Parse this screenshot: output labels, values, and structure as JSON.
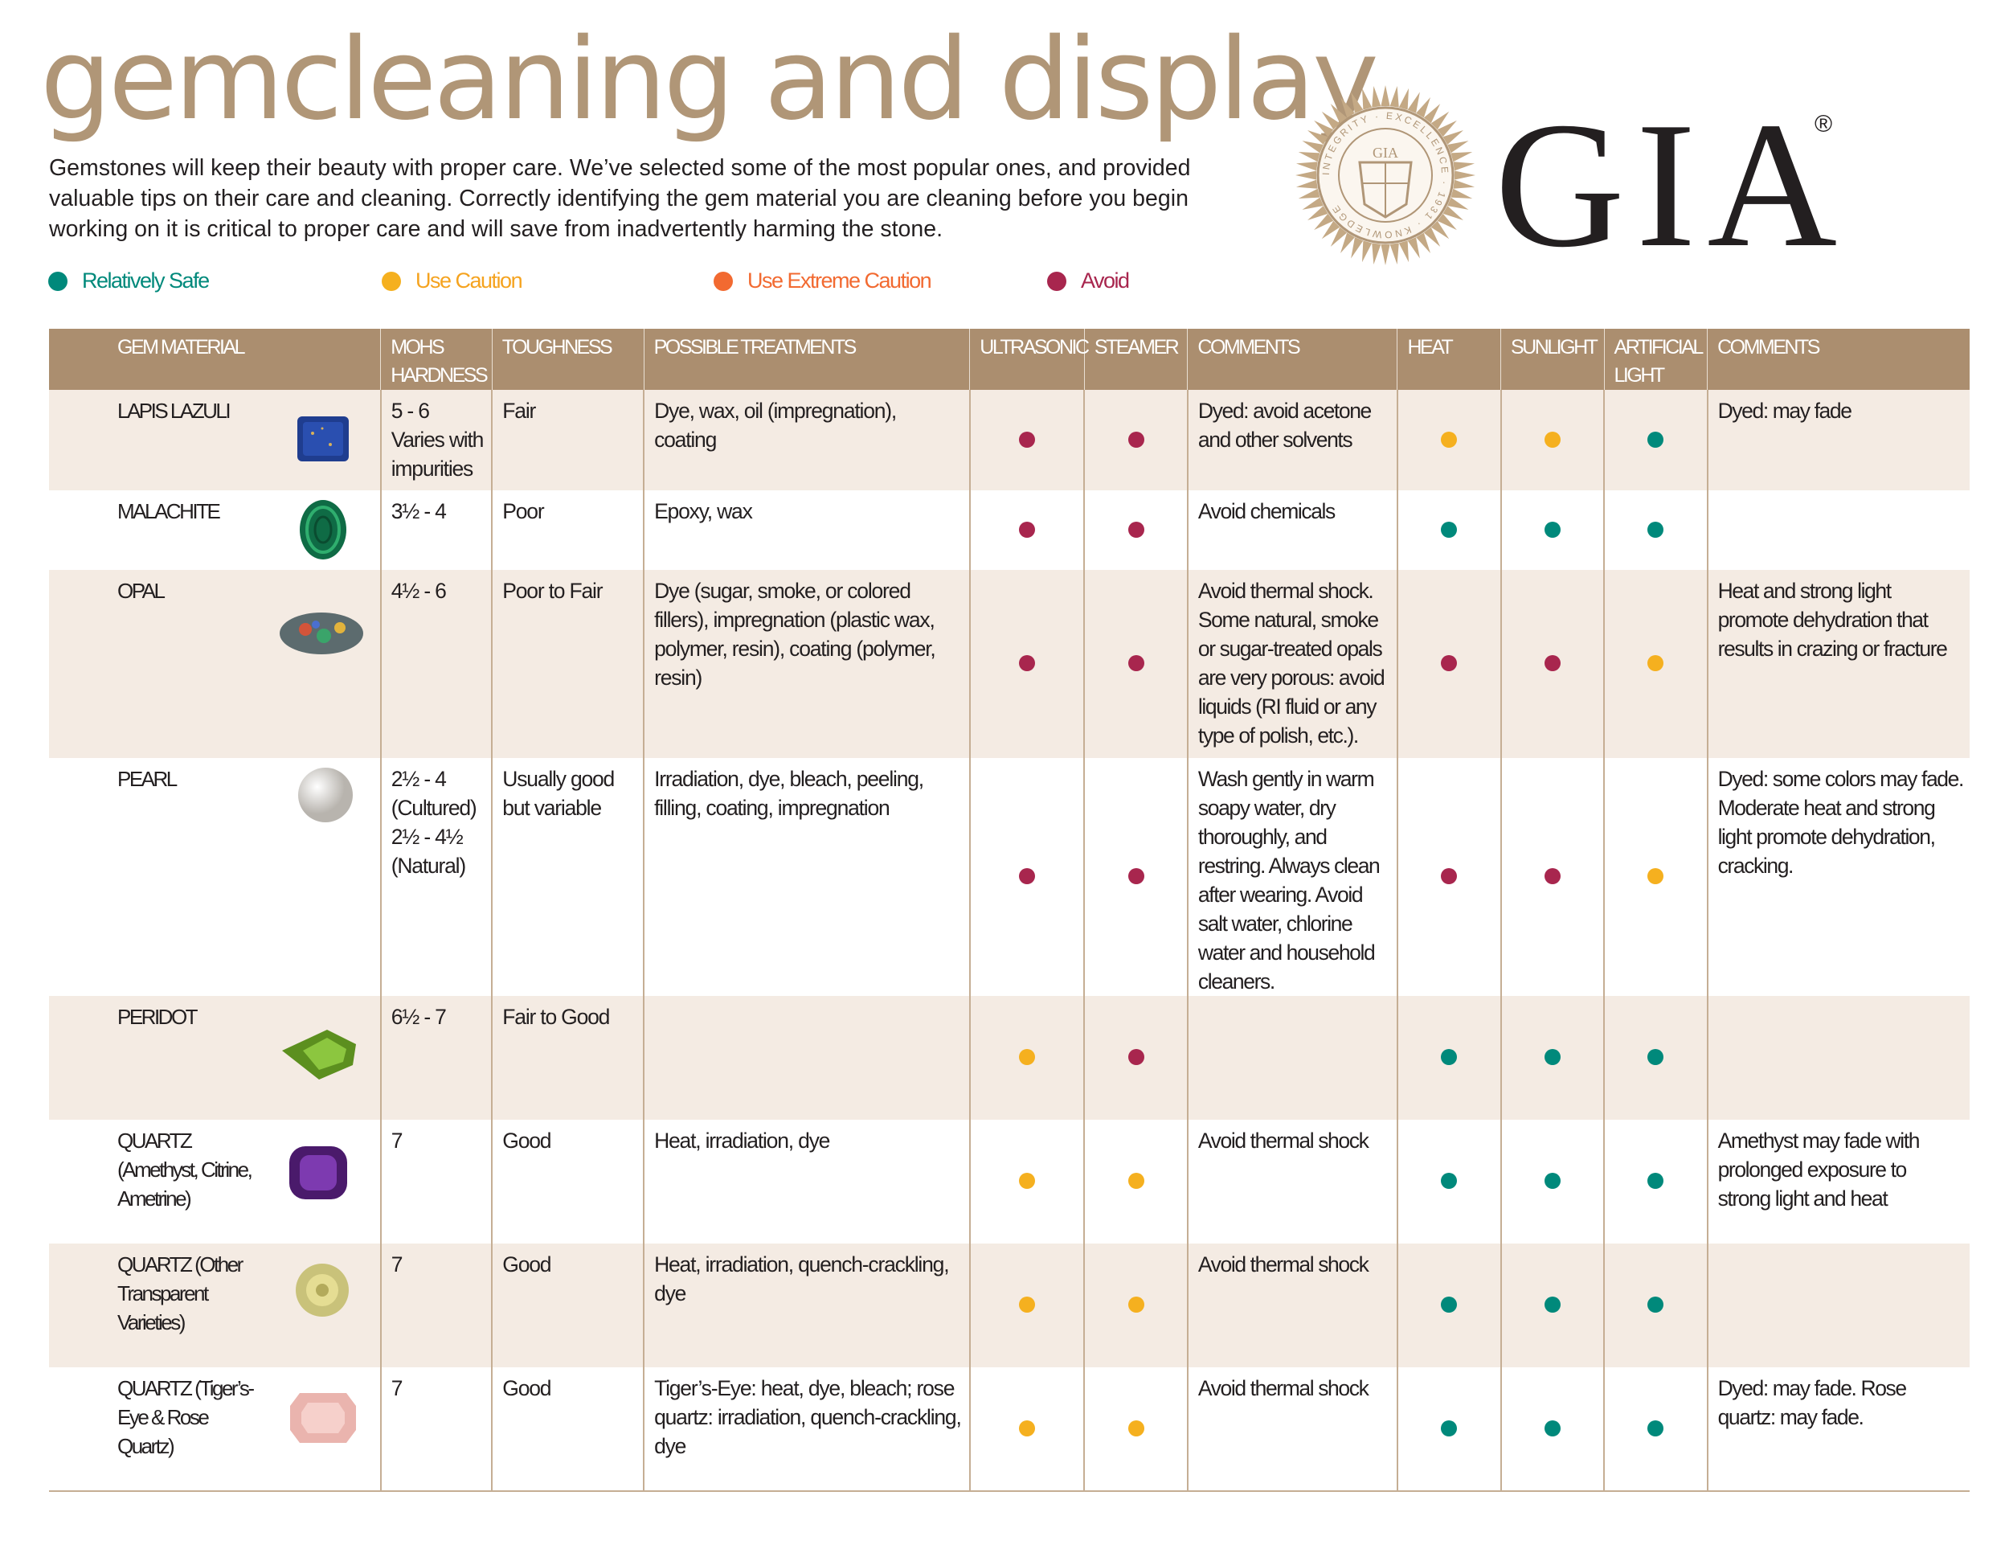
{
  "header": {
    "title": "gemcleaning  and display",
    "intro": "Gemstones will  keep their  beauty with  proper care. We’ve selected some of the most popular ones, and provided valuable tips on their care and cleaning. Correctly identifying  the gem material  you are cleaning before you begin working on it is critical  to proper care and will  save from inadvertently harming the stone."
  },
  "logo": {
    "wordmark": "GIA",
    "registered": "®",
    "seal_center": "GIA",
    "seal_text": "INTEGRITY · EXCELLENCE · 1931 · KNOWLEDGE"
  },
  "legend": [
    {
      "key": "safe",
      "label": "Relatively Safe",
      "color": "#00897b"
    },
    {
      "key": "caution",
      "label": "Use Caution",
      "color": "#f5b01f"
    },
    {
      "key": "extreme",
      "label": "Use Extreme Caution",
      "color": "#f26a31"
    },
    {
      "key": "avoid",
      "label": "Avoid",
      "color": "#a8264e"
    }
  ],
  "colors": {
    "header_bg": "#ab8e6f",
    "title": "#b09677",
    "row_shade": "#f4ebe3"
  },
  "columns": {
    "gem": "GEM MATERIAL",
    "mohs": "MOHS HARDNESS",
    "toughness": "TOUGHNESS",
    "treatments": "POSSIBLE TREATMENTS",
    "ultrasonic": "ULTRASONIC",
    "steamer": "STEAMER",
    "comments1": "COMMENTS",
    "heat": "HEAT",
    "sunlight": "SUNLIGHT",
    "artificial": "ARTIFICIAL LIGHT",
    "comments2": "COMMENTS"
  },
  "rows": [
    {
      "gem": "LAPIS LAZULI",
      "icon": "lapis-lazuli-gem-icon",
      "mohs": "5 - 6 Varies with impurities",
      "toughness": "Fair",
      "treatments": "Dye, wax, oil  (impregnation), coating",
      "ultrasonic": "avoid",
      "steamer": "avoid",
      "comments1": "Dyed: avoid acetone and other solvents",
      "heat": "caution",
      "sunlight": "caution",
      "artificial": "safe",
      "comments2": "Dyed: may fade"
    },
    {
      "gem": "MALACHITE",
      "icon": "malachite-gem-icon",
      "mohs": "3½ - 4",
      "toughness": "Poor",
      "treatments": "Epoxy, wax",
      "ultrasonic": "avoid",
      "steamer": "avoid",
      "comments1": "Avoid chemicals",
      "heat": "safe",
      "sunlight": "safe",
      "artificial": "safe",
      "comments2": ""
    },
    {
      "gem": "OPAL",
      "icon": "opal-gem-icon",
      "mohs": "4½ - 6",
      "toughness": "Poor to Fair",
      "treatments": "Dye (sugar, smoke, or colored fillers), impregnation (plastic  wax, polymer, resin), coating (polymer, resin)",
      "ultrasonic": "avoid",
      "steamer": "avoid",
      "comments1": "Avoid thermal  shock. Some natural,  smoke or sugar-treated opals are very porous: avoid liquids (RI fluid  or any type of polish, etc.).",
      "heat": "avoid",
      "sunlight": "avoid",
      "artificial": "caution",
      "comments2": "Heat and strong light promote dehydration that results in crazing or fracture"
    },
    {
      "gem": "PEARL",
      "icon": "pearl-gem-icon",
      "mohs": "2½ - 4 (Cultured) 2½ - 4½ (Natural)",
      "toughness": "Usually good but variable",
      "treatments": "Irradiation, dye, bleach, peeling, filling, coating, impregnation",
      "ultrasonic": "avoid",
      "steamer": "avoid",
      "comments1": "Wash gently  in warm soapy water, dry thoroughly, and restring.  Always clean after  wearing. Avoid salt water, chlorine water and household cleaners.",
      "heat": "avoid",
      "sunlight": "avoid",
      "artificial": "caution",
      "comments2": "Dyed: some colors  may fade. Moderate heat and strong light  promote dehydration, cracking."
    },
    {
      "gem": "PERIDOT",
      "icon": "peridot-gem-icon",
      "mohs": "6½ - 7",
      "toughness": "Fair to Good",
      "treatments": "",
      "ultrasonic": "caution",
      "steamer": "avoid",
      "comments1": "",
      "heat": "safe",
      "sunlight": "safe",
      "artificial": "safe",
      "comments2": ""
    },
    {
      "gem": "QUARTZ (Amethyst, Citrine, Ametrine)",
      "icon": "amethyst-gem-icon",
      "mohs": "7",
      "toughness": "Good",
      "treatments": "Heat, irradiation,  dye",
      "ultrasonic": "caution",
      "steamer": "caution",
      "comments1": "Avoid thermal  shock",
      "heat": "safe",
      "sunlight": "safe",
      "artificial": "safe",
      "comments2": "Amethyst may fade with prolonged exposure to strong light  and heat"
    },
    {
      "gem": "QUARTZ (Other Transparent Varieties)",
      "icon": "citrine-gem-icon",
      "mohs": "7",
      "toughness": "Good",
      "treatments": "Heat, irradiation,  quench-crackling, dye",
      "ultrasonic": "caution",
      "steamer": "caution",
      "comments1": "Avoid thermal  shock",
      "heat": "safe",
      "sunlight": "safe",
      "artificial": "safe",
      "comments2": ""
    },
    {
      "gem": "QUARTZ (Tiger’s-Eye & Rose Quartz)",
      "icon": "rose-quartz-gem-icon",
      "mohs": "7",
      "toughness": "Good",
      "treatments": "Tiger’s-Eye: heat, dye, bleach; rose quartz: irradiation, quench-crackling, dye",
      "ultrasonic": "caution",
      "steamer": "caution",
      "comments1": "Avoid thermal  shock",
      "heat": "safe",
      "sunlight": "safe",
      "artificial": "safe",
      "comments2": "Dyed: may fade. Rose quartz:  may fade."
    }
  ]
}
